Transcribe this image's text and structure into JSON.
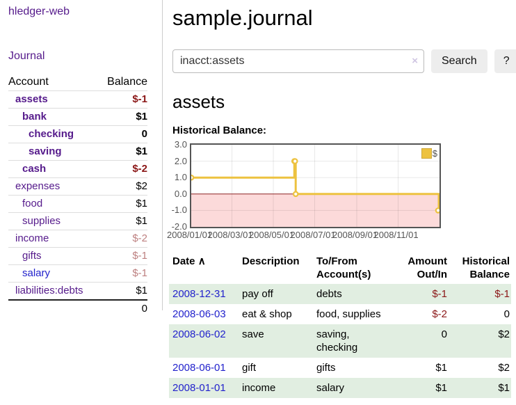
{
  "app_title": "hledger-web",
  "sidebar": {
    "journal_link": "Journal",
    "account_header": "Account",
    "balance_header": "Balance",
    "rows": [
      {
        "account": "assets",
        "balance": "$-1"
      },
      {
        "account": "bank",
        "balance": "$1"
      },
      {
        "account": "checking",
        "balance": "0"
      },
      {
        "account": "saving",
        "balance": "$1"
      },
      {
        "account": "cash",
        "balance": "$-2"
      },
      {
        "account": "expenses",
        "balance": "$2"
      },
      {
        "account": "food",
        "balance": "$1"
      },
      {
        "account": "supplies",
        "balance": "$1"
      },
      {
        "account": "income",
        "balance": "$-2"
      },
      {
        "account": "gifts",
        "balance": "$-1"
      },
      {
        "account": "salary",
        "balance": "$-1"
      },
      {
        "account": "liabilities:debts",
        "balance": "$1"
      }
    ],
    "total": "0"
  },
  "main": {
    "title": "sample.journal",
    "search": {
      "value": "inacct:assets",
      "clear_icon": "×",
      "search_button": "Search",
      "help_button": "?"
    },
    "account_heading": "assets",
    "chart_title": "Historical Balance:"
  },
  "chart_data": {
    "type": "line",
    "title": "Historical Balance of assets",
    "legend": [
      {
        "label": "$",
        "color": "#EDC240"
      }
    ],
    "ylim": [
      -2,
      3
    ],
    "y_ticks": [
      3.0,
      2.0,
      1.0,
      0.0,
      -1.0,
      -2.0
    ],
    "xlim_days": [
      0,
      366
    ],
    "x_tick_labels": [
      "2008/01/01",
      "2008/03/01",
      "2008/05/01",
      "2008/07/01",
      "2008/09/01",
      "2008/11/01"
    ],
    "x_tick_days": [
      0,
      60,
      121,
      182,
      244,
      305
    ],
    "series": [
      {
        "name": "$",
        "color": "#EDC240",
        "step": true,
        "points": [
          {
            "date": "2008-01-01",
            "day": 0,
            "value": 1
          },
          {
            "date": "2008-06-01",
            "day": 152,
            "value": 2
          },
          {
            "date": "2008-06-02",
            "day": 153,
            "value": 2
          },
          {
            "date": "2008-06-03",
            "day": 154,
            "value": 0
          },
          {
            "date": "2008-12-31",
            "day": 365,
            "value": -1
          }
        ]
      }
    ],
    "negative_region_color": "#fcdada",
    "zero_line_color": "#8b2020",
    "grid": true,
    "legend_position": "top-right"
  },
  "register": {
    "headers": {
      "date": "Date",
      "sort_arrow": "∧",
      "description": "Description",
      "accounts": "To/From Account(s)",
      "amount": "Amount Out/In",
      "balance": "Historical Balance"
    },
    "rows": [
      {
        "date": "2008-12-31",
        "description": "pay off",
        "accounts": "debts",
        "amount": "$-1",
        "balance": "$-1"
      },
      {
        "date": "2008-06-03",
        "description": "eat & shop",
        "accounts": "food, supplies",
        "amount": "$-2",
        "balance": "0"
      },
      {
        "date": "2008-06-02",
        "description": "save",
        "accounts": "saving, checking",
        "amount": "0",
        "balance": "$2"
      },
      {
        "date": "2008-06-01",
        "description": "gift",
        "accounts": "gifts",
        "amount": "$1",
        "balance": "$2"
      },
      {
        "date": "2008-01-01",
        "description": "income",
        "accounts": "salary",
        "amount": "$1",
        "balance": "$1"
      }
    ]
  }
}
